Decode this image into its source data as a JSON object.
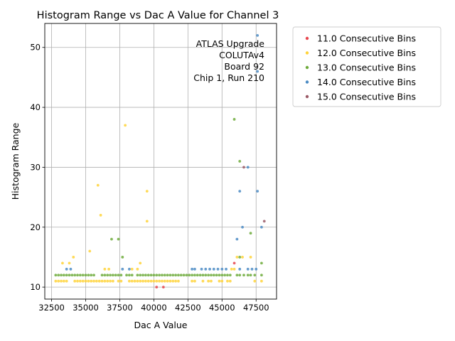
{
  "chart_data": {
    "type": "scatter",
    "title": "Histogram Range vs Dac A Value for Channel 3",
    "xlabel": "Dac A Value",
    "ylabel": "Histogram Range",
    "xlim": [
      32000,
      49000
    ],
    "ylim": [
      8,
      54
    ],
    "xticks": [
      32500,
      35000,
      37500,
      40000,
      42500,
      45000,
      47500
    ],
    "xtick_labels": [
      "32500",
      "35000",
      "37500",
      "40000",
      "42500",
      "45000",
      "47500"
    ],
    "yticks": [
      10,
      20,
      30,
      40,
      50
    ],
    "ytick_labels": [
      "10",
      "20",
      "30",
      "40",
      "50"
    ],
    "grid": true,
    "legend_position": "outside-right",
    "annotation": [
      "ATLAS Upgrade",
      "COLUTAv4",
      "Board 92",
      "Chip 1, Run 210"
    ],
    "series": [
      {
        "name": "11.0 Consecutive Bins",
        "color": "#e8474e",
        "x": [
          40200,
          40700,
          45900
        ],
        "y": [
          10,
          10,
          14
        ]
      },
      {
        "name": "12.0 Consecutive Bins",
        "color": "#ffd33a",
        "x": [
          32800,
          33000,
          33200,
          33400,
          33600,
          34200,
          34400,
          34600,
          34800,
          35000,
          35200,
          35400,
          35600,
          35800,
          36000,
          36200,
          36400,
          36600,
          36800,
          37000,
          37400,
          37600,
          38200,
          38400,
          38600,
          38800,
          39000,
          39200,
          39400,
          39600,
          39800,
          40000,
          40200,
          40400,
          40600,
          40800,
          41000,
          41200,
          41400,
          41600,
          41800,
          42800,
          43000,
          43600,
          44000,
          44200,
          44800,
          45000,
          45400,
          45600,
          33300,
          33800,
          34100,
          35300,
          35900,
          36100,
          36400,
          36700,
          37900,
          38400,
          38800,
          39000,
          39500,
          39500,
          45700,
          45900,
          46100,
          46500,
          47100,
          47400,
          47900
        ],
        "y": [
          11,
          11,
          11,
          11,
          11,
          11,
          11,
          11,
          11,
          11,
          11,
          11,
          11,
          11,
          11,
          11,
          11,
          11,
          11,
          11,
          11,
          11,
          11,
          11,
          11,
          11,
          11,
          11,
          11,
          11,
          11,
          11,
          11,
          11,
          11,
          11,
          11,
          11,
          11,
          11,
          11,
          11,
          11,
          11,
          11,
          11,
          11,
          11,
          11,
          11,
          14,
          14,
          15,
          16,
          27,
          22,
          13,
          13,
          37,
          13,
          13,
          14,
          26,
          21,
          13,
          13,
          15,
          15,
          15,
          11,
          11
        ]
      },
      {
        "name": "13.0 Consecutive Bins",
        "color": "#6fab3c",
        "x": [
          32800,
          33000,
          33200,
          33400,
          33600,
          33800,
          34000,
          34200,
          34400,
          34600,
          34800,
          35000,
          35200,
          35400,
          35600,
          36200,
          36400,
          36600,
          36800,
          37000,
          37200,
          37400,
          37600,
          38000,
          38200,
          38400,
          38800,
          39000,
          39200,
          39400,
          39600,
          39800,
          40000,
          40200,
          40400,
          40600,
          40800,
          41000,
          41200,
          41400,
          41600,
          41800,
          42000,
          42200,
          42400,
          42600,
          42800,
          43000,
          43200,
          43400,
          43600,
          43800,
          44000,
          44200,
          44400,
          44600,
          44800,
          45000,
          45200,
          45400,
          45600,
          46100,
          46300,
          46600,
          46900,
          47100,
          47400,
          47900,
          36900,
          37400,
          37700,
          45900,
          46300,
          46300,
          47100,
          47900
        ],
        "y": [
          12,
          12,
          12,
          12,
          12,
          12,
          12,
          12,
          12,
          12,
          12,
          12,
          12,
          12,
          12,
          12,
          12,
          12,
          12,
          12,
          12,
          12,
          12,
          12,
          12,
          12,
          12,
          12,
          12,
          12,
          12,
          12,
          12,
          12,
          12,
          12,
          12,
          12,
          12,
          12,
          12,
          12,
          12,
          12,
          12,
          12,
          12,
          12,
          12,
          12,
          12,
          12,
          12,
          12,
          12,
          12,
          12,
          12,
          12,
          12,
          12,
          12,
          12,
          12,
          12,
          12,
          12,
          12,
          18,
          18,
          15,
          38,
          31,
          15,
          19,
          14
        ]
      },
      {
        "name": "14.0 Consecutive Bins",
        "color": "#4b8bc4",
        "x": [
          33600,
          33900,
          37700,
          38200,
          42800,
          43000,
          43500,
          43800,
          44100,
          44400,
          44700,
          45000,
          45300,
          46300,
          46900,
          47200,
          47500,
          46100,
          46300,
          46500,
          46900,
          47600,
          47600,
          47600,
          47900
        ],
        "y": [
          13,
          13,
          13,
          13,
          13,
          13,
          13,
          13,
          13,
          13,
          13,
          13,
          13,
          13,
          13,
          13,
          13,
          18,
          26,
          20,
          30,
          52,
          46,
          26,
          20
        ]
      },
      {
        "name": "15.0 Consecutive Bins",
        "color": "#9b5a67",
        "x": [
          46600,
          48100
        ],
        "y": [
          30,
          21
        ]
      }
    ]
  }
}
